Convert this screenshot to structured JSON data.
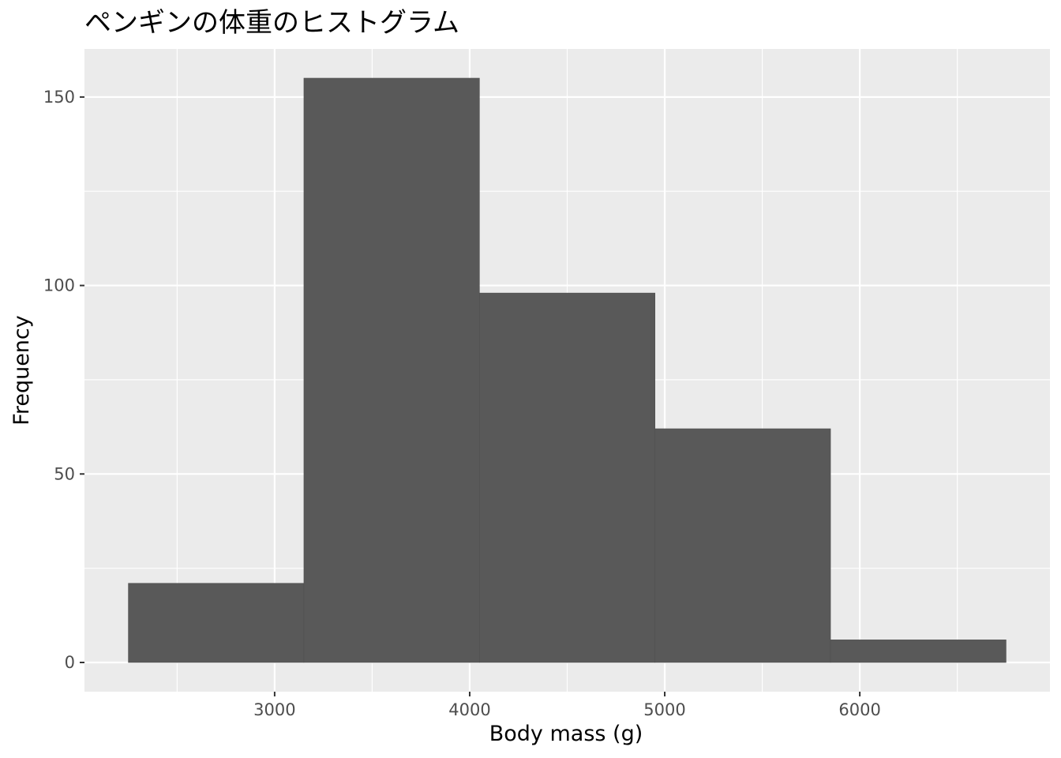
{
  "chart_data": {
    "type": "bar",
    "title": "ペンギンの体重のヒストグラム",
    "xlabel": "Body mass (g)",
    "ylabel": "Frequency",
    "bins": [
      {
        "x0": 2250,
        "x1": 3150,
        "count": 21
      },
      {
        "x0": 3150,
        "x1": 4050,
        "count": 155
      },
      {
        "x0": 4050,
        "x1": 4950,
        "count": 98
      },
      {
        "x0": 4950,
        "x1": 5850,
        "count": 62
      },
      {
        "x0": 5850,
        "x1": 6750,
        "count": 6
      }
    ],
    "xlim": [
      2025,
      6975
    ],
    "ylim": [
      -7.75,
      162.75
    ],
    "xticks": [
      3000,
      4000,
      5000,
      6000
    ],
    "xtick_labels": [
      "3000",
      "4000",
      "5000",
      "6000"
    ],
    "yticks": [
      0,
      50,
      100,
      150
    ],
    "ytick_labels": [
      "0",
      "50",
      "100",
      "150"
    ],
    "grid": true,
    "panel_color": "#ebebeb",
    "bar_color": "#595959",
    "grid_color": "#ffffff"
  }
}
